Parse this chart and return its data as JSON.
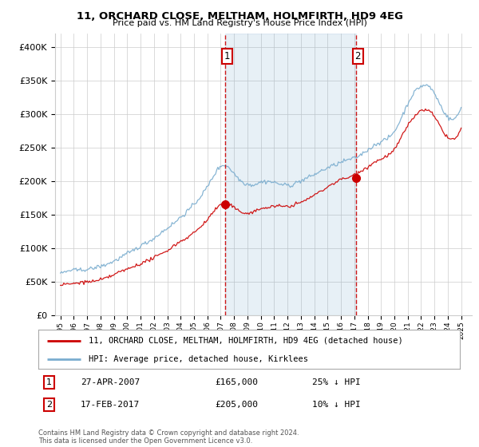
{
  "title": "11, ORCHARD CLOSE, MELTHAM, HOLMFIRTH, HD9 4EG",
  "subtitle": "Price paid vs. HM Land Registry's House Price Index (HPI)",
  "legend_line1": "11, ORCHARD CLOSE, MELTHAM, HOLMFIRTH, HD9 4EG (detached house)",
  "legend_line2": "HPI: Average price, detached house, Kirklees",
  "footnote": "Contains HM Land Registry data © Crown copyright and database right 2024.\nThis data is licensed under the Open Government Licence v3.0.",
  "annotation1": {
    "label": "1",
    "date": "27-APR-2007",
    "price": "£165,000",
    "pct": "25% ↓ HPI"
  },
  "annotation2": {
    "label": "2",
    "date": "17-FEB-2017",
    "price": "£205,000",
    "pct": "10% ↓ HPI"
  },
  "red_color": "#cc0000",
  "blue_color": "#7aadcf",
  "shade_color": "#ddeeff",
  "dashed_color": "#cc0000",
  "background_color": "#ffffff",
  "grid_color": "#cccccc",
  "ylim": [
    0,
    420000
  ],
  "yticks": [
    0,
    50000,
    100000,
    150000,
    200000,
    250000,
    300000,
    350000,
    400000
  ],
  "ytick_labels": [
    "£0",
    "£50K",
    "£100K",
    "£150K",
    "£200K",
    "£250K",
    "£300K",
    "£350K",
    "£400K"
  ],
  "sale1_x": 2007.32,
  "sale1_y": 165000,
  "sale2_x": 2017.12,
  "sale2_y": 205000,
  "xlim_left": 1994.6,
  "xlim_right": 2025.8
}
